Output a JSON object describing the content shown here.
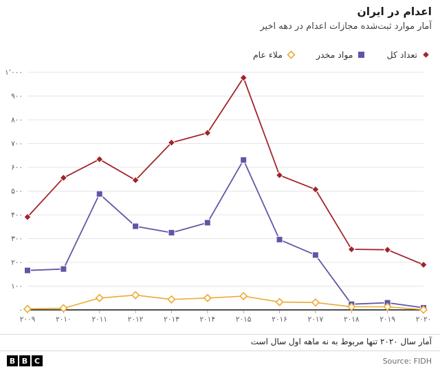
{
  "header": {
    "title": "اعدام در ایران",
    "subtitle": "آمار موارد ثبت‌شده مجازات اعدام در دهه اخیر"
  },
  "legend": [
    {
      "label": "تعداد کل",
      "color": "#a1242a",
      "marker": "diamond",
      "filled": true
    },
    {
      "label": "مواد مخدر",
      "color": "#5e57a6",
      "marker": "square",
      "filled": true
    },
    {
      "label": "ملاء عام",
      "color": "#ecaa30",
      "marker": "diamond",
      "filled": false
    }
  ],
  "chart_data": {
    "type": "line",
    "categories": [
      "۲۰۰۹",
      "۲۰۱۰",
      "۲۰۱۱",
      "۲۰۱۲",
      "۲۰۱۳",
      "۲۰۱۴",
      "۲۰۱۵",
      "۲۰۱۶",
      "۲۰۱۷",
      "۲۰۱۸",
      "۲۰۱۹",
      "۲۰۲۰"
    ],
    "series": [
      {
        "name": "تعداد کل",
        "color": "#a1242a",
        "marker": "diamond",
        "filled": true,
        "values": [
          391,
          556,
          634,
          546,
          704,
          745,
          977,
          567,
          507,
          255,
          253,
          190
        ]
      },
      {
        "name": "مواد مخدر",
        "color": "#5e57a6",
        "marker": "square",
        "filled": true,
        "values": [
          166,
          172,
          488,
          352,
          325,
          367,
          631,
          296,
          231,
          24,
          30,
          9
        ]
      },
      {
        "name": "ملاء عام",
        "color": "#ecaa30",
        "marker": "diamond",
        "filled": false,
        "values": [
          4,
          7,
          50,
          62,
          44,
          50,
          58,
          33,
          31,
          13,
          13,
          1
        ]
      }
    ],
    "ylim": [
      0,
      1000
    ],
    "ytick_step": 100,
    "ytick_labels": [
      "۰",
      "۱۰۰",
      "۲۰۰",
      "۳۰۰",
      "۴۰۰",
      "۵۰۰",
      "۶۰۰",
      "۷۰۰",
      "۸۰۰",
      "۹۰۰",
      "۱٬۰۰۰"
    ],
    "grid": "horizontal",
    "legend_position": "top-right"
  },
  "footer": {
    "note": "آمار سال ۲۰۲۰ تنها مربوط به نه ماهه اول سال است",
    "source": "Source: FIDH",
    "logo_blocks": [
      "B",
      "B",
      "C"
    ]
  }
}
